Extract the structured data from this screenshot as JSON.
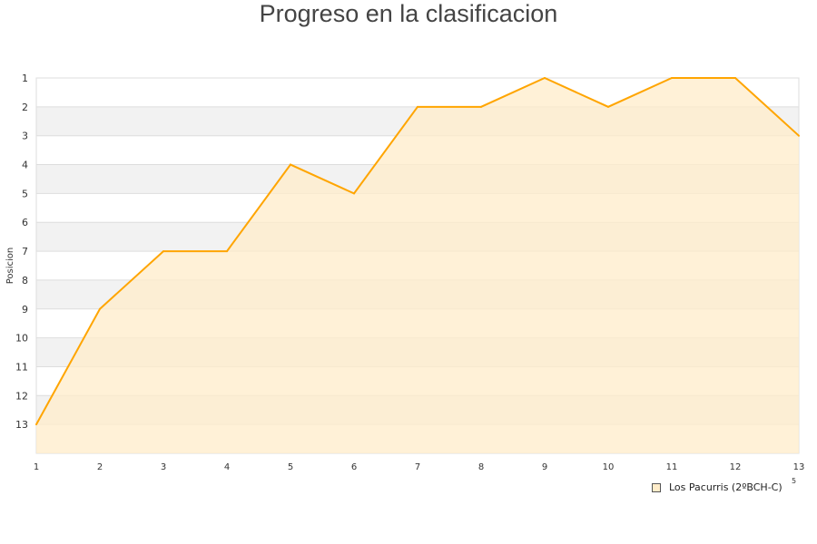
{
  "chart_data": {
    "type": "area",
    "title": "Progreso en la clasificacion",
    "ylabel": "Posicion",
    "xlabel_fragment": "5",
    "x": [
      1,
      2,
      3,
      4,
      5,
      6,
      7,
      8,
      9,
      10,
      11,
      12,
      13
    ],
    "series": [
      {
        "name": "Los Pacurris (2ºBCH-C)",
        "values": [
          13,
          9,
          7,
          7,
          4,
          5,
          2,
          2,
          1,
          2,
          1,
          1,
          3
        ]
      }
    ],
    "xlim": [
      1,
      13
    ],
    "ylim": [
      14,
      1
    ],
    "y_ticks": [
      1,
      2,
      3,
      4,
      5,
      6,
      7,
      8,
      9,
      10,
      11,
      12,
      13
    ],
    "y_inverted": true,
    "grid": true,
    "legend": "bottom-right",
    "colors": {
      "line": "#ffa500",
      "fill": "#ffecc9",
      "band": "#f2f2f2"
    }
  }
}
